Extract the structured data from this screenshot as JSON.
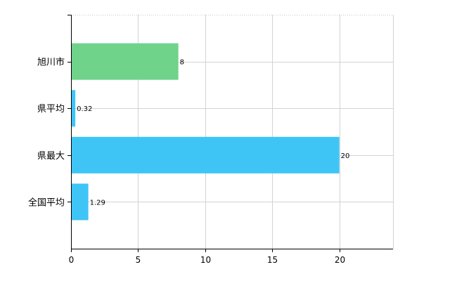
{
  "chart_data": {
    "type": "bar",
    "orientation": "horizontal",
    "categories": [
      "旭川市",
      "県平均",
      "県最大",
      "全国平均"
    ],
    "values": [
      8,
      0.32,
      20,
      1.29
    ],
    "value_labels": [
      "8",
      "0.32",
      "20",
      "1.29"
    ],
    "bar_colors": [
      "#6fd38a",
      "#3ec5f5",
      "#3ec5f5",
      "#3ec5f5"
    ],
    "title": "",
    "xlabel": "",
    "ylabel": "",
    "xlim": [
      0,
      24
    ],
    "x_ticks": [
      0,
      5,
      10,
      15,
      20
    ],
    "x_tick_labels": [
      "0",
      "5",
      "10",
      "15",
      "20"
    ],
    "grid": true,
    "legend": "none"
  }
}
